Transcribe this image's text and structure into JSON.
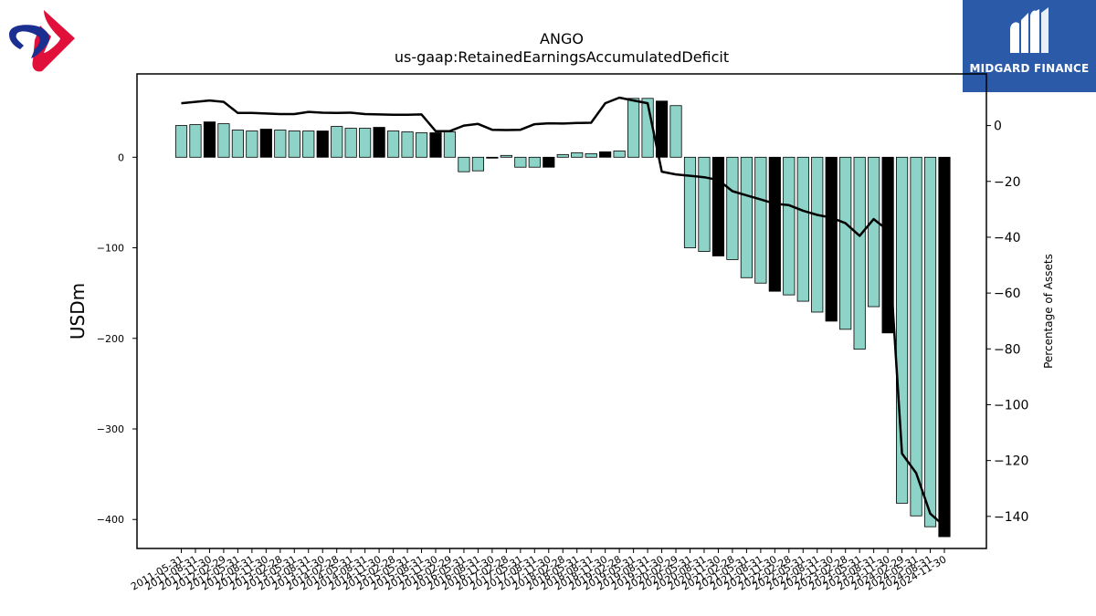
{
  "branding": {
    "left_logo_icon": "swirl-logo-icon",
    "right_logo_icon": "midgard-finance-logo-icon",
    "right_logo_text": "MIDGARD FINANCE",
    "colors": {
      "logo_red": "#e0103a",
      "logo_blue": "#1a2f8f",
      "banner_blue": "#2b5aa8"
    }
  },
  "chart_data": {
    "type": "bar",
    "title": "ANGO",
    "subtitle": "us-gaap:RetainedEarningsAccumulatedDeficit",
    "ylabel": "USDm",
    "y2label": "Percentage of Assets",
    "ylim": [
      -432,
      92
    ],
    "y2lim": [
      -151.5,
      18.5
    ],
    "yticks": [
      0,
      -100,
      -200,
      -300,
      -400
    ],
    "y2ticks": [
      0,
      -20,
      -40,
      -60,
      -80,
      -100,
      -120,
      -140
    ],
    "categories": [
      "2011-05-31",
      "2011-08-31",
      "2011-11-30",
      "2012-02-29",
      "2012-05-31",
      "2012-08-31",
      "2012-11-30",
      "2013-02-28",
      "2013-05-31",
      "2013-08-31",
      "2013-11-30",
      "2014-02-28",
      "2014-05-31",
      "2014-08-31",
      "2014-11-30",
      "2015-02-28",
      "2015-05-31",
      "2015-08-31",
      "2015-11-30",
      "2016-02-29",
      "2016-05-31",
      "2016-08-31",
      "2016-11-30",
      "2017-02-28",
      "2017-05-31",
      "2017-08-31",
      "2017-11-30",
      "2018-02-28",
      "2018-05-31",
      "2018-08-31",
      "2018-11-30",
      "2019-02-28",
      "2019-05-31",
      "2019-08-31",
      "2019-11-30",
      "2020-02-29",
      "2020-05-31",
      "2020-08-31",
      "2020-11-30",
      "2021-02-28",
      "2021-05-31",
      "2021-08-31",
      "2021-11-30",
      "2022-02-28",
      "2022-05-31",
      "2022-08-31",
      "2022-11-30",
      "2023-02-28",
      "2023-05-31",
      "2023-08-31",
      "2023-11-30",
      "2024-02-29",
      "2024-05-31",
      "2024-08-31",
      "2024-11-30"
    ],
    "series": [
      {
        "type": "bar",
        "values": [
          35,
          36,
          39,
          37,
          30,
          29,
          31,
          30,
          29,
          29,
          29,
          34,
          32,
          32,
          33,
          29,
          28,
          27,
          27,
          28,
          -16,
          -15,
          -1,
          2,
          -11,
          -11,
          -11,
          3,
          5,
          4,
          6,
          7,
          65,
          65,
          62,
          57,
          -100,
          -104,
          -109,
          -113,
          -133,
          -139,
          -148,
          -152,
          -159,
          -171,
          -181,
          -190,
          -212,
          -165,
          -194,
          -382,
          -396,
          -408,
          -419
        ],
        "highlight_indices": [
          2,
          6,
          10,
          14,
          18,
          22,
          26,
          30,
          34,
          38,
          42,
          46,
          50,
          54
        ]
      },
      {
        "type": "line",
        "axis": "secondary",
        "values": [
          8,
          8.5,
          9,
          8.5,
          4.5,
          4.5,
          4.3,
          4.1,
          4.1,
          4.9,
          4.6,
          4.5,
          4.6,
          4.1,
          4,
          3.9,
          3.9,
          4,
          -2,
          -2,
          0,
          0.6,
          -1.5,
          -1.6,
          -1.5,
          0.5,
          0.8,
          0.7,
          0.9,
          1,
          8,
          10,
          9,
          8,
          -16.5,
          -17.5,
          -18,
          -18.5,
          -19.5,
          -23.5,
          -25,
          -26.5,
          -28,
          -28.5,
          -30.5,
          -32,
          -33,
          -35,
          -39.5,
          -33.5,
          -37.5,
          -117.5,
          -124.5,
          -139,
          -143.5
        ]
      }
    ],
    "colors": {
      "bar": "#8dd3c7",
      "bar_highlight": "#000000",
      "line": "#000000"
    },
    "grid": false,
    "legend": "none"
  }
}
